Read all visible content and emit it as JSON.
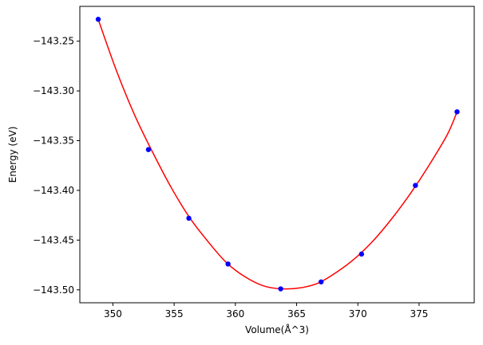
{
  "chart_data": {
    "type": "scatter",
    "title": "",
    "xlabel": "Volume(Å^3)",
    "ylabel": "Energy (eV)",
    "xlim": [
      347.3,
      379.5
    ],
    "ylim": [
      -143.513,
      -143.215
    ],
    "xticks": [
      350,
      355,
      360,
      365,
      370,
      375
    ],
    "xtick_labels": [
      "350",
      "355",
      "360",
      "365",
      "370",
      "375"
    ],
    "yticks": [
      -143.25,
      -143.3,
      -143.35,
      -143.4,
      -143.45,
      -143.5
    ],
    "ytick_labels": [
      "−143.25",
      "−143.30",
      "−143.35",
      "−143.40",
      "−143.45",
      "−143.50"
    ],
    "grid": false,
    "series": [
      {
        "kind": "points",
        "color": "#0000ff",
        "x": [
          348.8,
          352.9,
          356.2,
          359.4,
          363.7,
          367.0,
          370.3,
          374.7,
          378.1
        ],
        "y": [
          -143.228,
          -143.359,
          -143.428,
          -143.474,
          -143.499,
          -143.492,
          -143.464,
          -143.395,
          -143.321
        ]
      },
      {
        "kind": "fit-curve",
        "color": "#ff0000",
        "x": [
          348.8,
          350.3,
          351.8,
          353.3,
          354.8,
          356.3,
          357.8,
          359.3,
          360.8,
          362.3,
          363.8,
          365.3,
          366.8,
          368.3,
          369.8,
          371.3,
          372.8,
          374.3,
          375.8,
          377.3,
          378.1
        ],
        "y": [
          -143.228,
          -143.28,
          -143.325,
          -143.363,
          -143.398,
          -143.428,
          -143.452,
          -143.473,
          -143.487,
          -143.496,
          -143.499,
          -143.498,
          -143.493,
          -143.482,
          -143.468,
          -143.45,
          -143.428,
          -143.403,
          -143.375,
          -143.344,
          -143.321
        ]
      }
    ]
  }
}
